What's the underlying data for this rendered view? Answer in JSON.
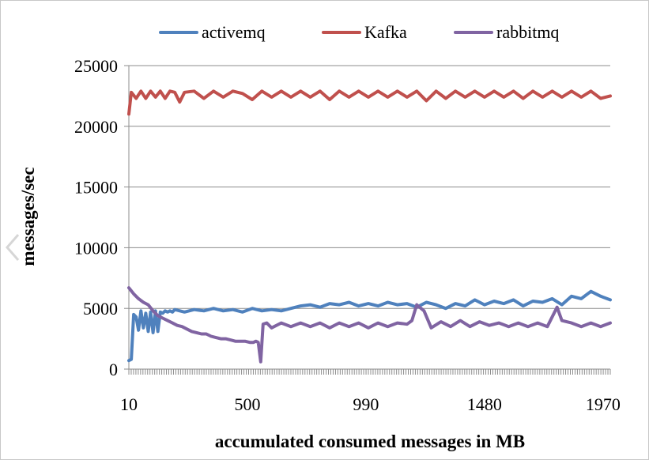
{
  "chart_data": {
    "type": "line",
    "title": "",
    "xlabel": "accumulated consumed messages in MB",
    "ylabel": "messages/sec",
    "xlim": [
      10,
      2000
    ],
    "ylim": [
      0,
      25000
    ],
    "x_tick_labels": [
      "10",
      "500",
      "990",
      "1480",
      "1970"
    ],
    "x_tick_values": [
      10,
      500,
      990,
      1480,
      1970
    ],
    "y_ticks": [
      0,
      5000,
      10000,
      15000,
      20000,
      25000
    ],
    "y_tick_labels": [
      "0",
      "5000",
      "10000",
      "15000",
      "20000",
      "25000"
    ],
    "grid": "horizontal",
    "legend_position": "top",
    "series": [
      {
        "name": "activemq",
        "color": "#4f81bd",
        "points": [
          [
            10,
            700
          ],
          [
            20,
            800
          ],
          [
            30,
            4500
          ],
          [
            40,
            4300
          ],
          [
            50,
            3200
          ],
          [
            60,
            4800
          ],
          [
            70,
            3400
          ],
          [
            80,
            4600
          ],
          [
            90,
            3100
          ],
          [
            100,
            4700
          ],
          [
            110,
            3000
          ],
          [
            120,
            4800
          ],
          [
            130,
            3100
          ],
          [
            140,
            4700
          ],
          [
            150,
            4600
          ],
          [
            160,
            4800
          ],
          [
            170,
            4700
          ],
          [
            180,
            4800
          ],
          [
            190,
            4700
          ],
          [
            200,
            4900
          ],
          [
            240,
            4700
          ],
          [
            280,
            4900
          ],
          [
            320,
            4800
          ],
          [
            360,
            5000
          ],
          [
            400,
            4800
          ],
          [
            440,
            4900
          ],
          [
            480,
            4700
          ],
          [
            520,
            5000
          ],
          [
            560,
            4800
          ],
          [
            600,
            4900
          ],
          [
            640,
            4800
          ],
          [
            680,
            5000
          ],
          [
            720,
            5200
          ],
          [
            760,
            5300
          ],
          [
            800,
            5100
          ],
          [
            840,
            5400
          ],
          [
            880,
            5300
          ],
          [
            920,
            5500
          ],
          [
            960,
            5200
          ],
          [
            1000,
            5400
          ],
          [
            1040,
            5200
          ],
          [
            1080,
            5500
          ],
          [
            1120,
            5300
          ],
          [
            1160,
            5400
          ],
          [
            1200,
            5100
          ],
          [
            1240,
            5500
          ],
          [
            1280,
            5300
          ],
          [
            1320,
            5000
          ],
          [
            1360,
            5400
          ],
          [
            1400,
            5200
          ],
          [
            1440,
            5700
          ],
          [
            1480,
            5300
          ],
          [
            1520,
            5600
          ],
          [
            1560,
            5400
          ],
          [
            1600,
            5700
          ],
          [
            1640,
            5200
          ],
          [
            1680,
            5600
          ],
          [
            1720,
            5500
          ],
          [
            1760,
            5800
          ],
          [
            1800,
            5300
          ],
          [
            1840,
            6000
          ],
          [
            1880,
            5800
          ],
          [
            1920,
            6400
          ],
          [
            1960,
            6000
          ],
          [
            2000,
            5700
          ]
        ]
      },
      {
        "name": "Kafka",
        "color": "#c0504d",
        "points": [
          [
            10,
            21000
          ],
          [
            20,
            22800
          ],
          [
            40,
            22300
          ],
          [
            60,
            22900
          ],
          [
            80,
            22300
          ],
          [
            100,
            22900
          ],
          [
            120,
            22400
          ],
          [
            140,
            22900
          ],
          [
            160,
            22300
          ],
          [
            180,
            22900
          ],
          [
            200,
            22800
          ],
          [
            220,
            22000
          ],
          [
            240,
            22800
          ],
          [
            280,
            22900
          ],
          [
            320,
            22300
          ],
          [
            360,
            22900
          ],
          [
            400,
            22400
          ],
          [
            440,
            22900
          ],
          [
            480,
            22700
          ],
          [
            520,
            22200
          ],
          [
            560,
            22900
          ],
          [
            600,
            22400
          ],
          [
            640,
            22900
          ],
          [
            680,
            22400
          ],
          [
            720,
            22900
          ],
          [
            760,
            22400
          ],
          [
            800,
            22900
          ],
          [
            840,
            22200
          ],
          [
            880,
            22900
          ],
          [
            920,
            22400
          ],
          [
            960,
            22900
          ],
          [
            1000,
            22400
          ],
          [
            1040,
            22900
          ],
          [
            1080,
            22400
          ],
          [
            1120,
            22900
          ],
          [
            1160,
            22400
          ],
          [
            1200,
            22900
          ],
          [
            1240,
            22100
          ],
          [
            1280,
            22900
          ],
          [
            1320,
            22300
          ],
          [
            1360,
            22900
          ],
          [
            1400,
            22400
          ],
          [
            1440,
            22900
          ],
          [
            1480,
            22400
          ],
          [
            1520,
            22900
          ],
          [
            1560,
            22400
          ],
          [
            1600,
            22900
          ],
          [
            1640,
            22300
          ],
          [
            1680,
            22900
          ],
          [
            1720,
            22400
          ],
          [
            1760,
            22900
          ],
          [
            1800,
            22400
          ],
          [
            1840,
            22900
          ],
          [
            1880,
            22400
          ],
          [
            1920,
            22900
          ],
          [
            1960,
            22300
          ],
          [
            2000,
            22500
          ]
        ]
      },
      {
        "name": "rabbitmq",
        "color": "#8064a2",
        "points": [
          [
            10,
            6700
          ],
          [
            30,
            6200
          ],
          [
            50,
            5800
          ],
          [
            70,
            5500
          ],
          [
            90,
            5300
          ],
          [
            110,
            4800
          ],
          [
            130,
            4400
          ],
          [
            150,
            4200
          ],
          [
            170,
            4000
          ],
          [
            190,
            3800
          ],
          [
            210,
            3600
          ],
          [
            230,
            3500
          ],
          [
            250,
            3300
          ],
          [
            270,
            3100
          ],
          [
            290,
            3000
          ],
          [
            310,
            2900
          ],
          [
            330,
            2900
          ],
          [
            350,
            2700
          ],
          [
            370,
            2600
          ],
          [
            390,
            2500
          ],
          [
            410,
            2500
          ],
          [
            430,
            2400
          ],
          [
            450,
            2300
          ],
          [
            470,
            2300
          ],
          [
            490,
            2300
          ],
          [
            510,
            2200
          ],
          [
            525,
            2200
          ],
          [
            535,
            2300
          ],
          [
            545,
            2200
          ],
          [
            555,
            600
          ],
          [
            565,
            3700
          ],
          [
            580,
            3800
          ],
          [
            600,
            3400
          ],
          [
            640,
            3800
          ],
          [
            680,
            3500
          ],
          [
            720,
            3800
          ],
          [
            760,
            3500
          ],
          [
            800,
            3800
          ],
          [
            840,
            3400
          ],
          [
            880,
            3800
          ],
          [
            920,
            3500
          ],
          [
            960,
            3800
          ],
          [
            1000,
            3400
          ],
          [
            1040,
            3800
          ],
          [
            1080,
            3500
          ],
          [
            1120,
            3800
          ],
          [
            1160,
            3700
          ],
          [
            1180,
            4000
          ],
          [
            1200,
            5300
          ],
          [
            1230,
            4800
          ],
          [
            1260,
            3400
          ],
          [
            1300,
            3900
          ],
          [
            1340,
            3500
          ],
          [
            1380,
            4000
          ],
          [
            1420,
            3500
          ],
          [
            1460,
            3900
          ],
          [
            1500,
            3600
          ],
          [
            1540,
            3800
          ],
          [
            1580,
            3500
          ],
          [
            1620,
            3800
          ],
          [
            1660,
            3500
          ],
          [
            1700,
            3800
          ],
          [
            1740,
            3500
          ],
          [
            1780,
            5100
          ],
          [
            1800,
            4000
          ],
          [
            1840,
            3800
          ],
          [
            1880,
            3500
          ],
          [
            1920,
            3800
          ],
          [
            1960,
            3500
          ],
          [
            2000,
            3800
          ]
        ]
      }
    ]
  }
}
